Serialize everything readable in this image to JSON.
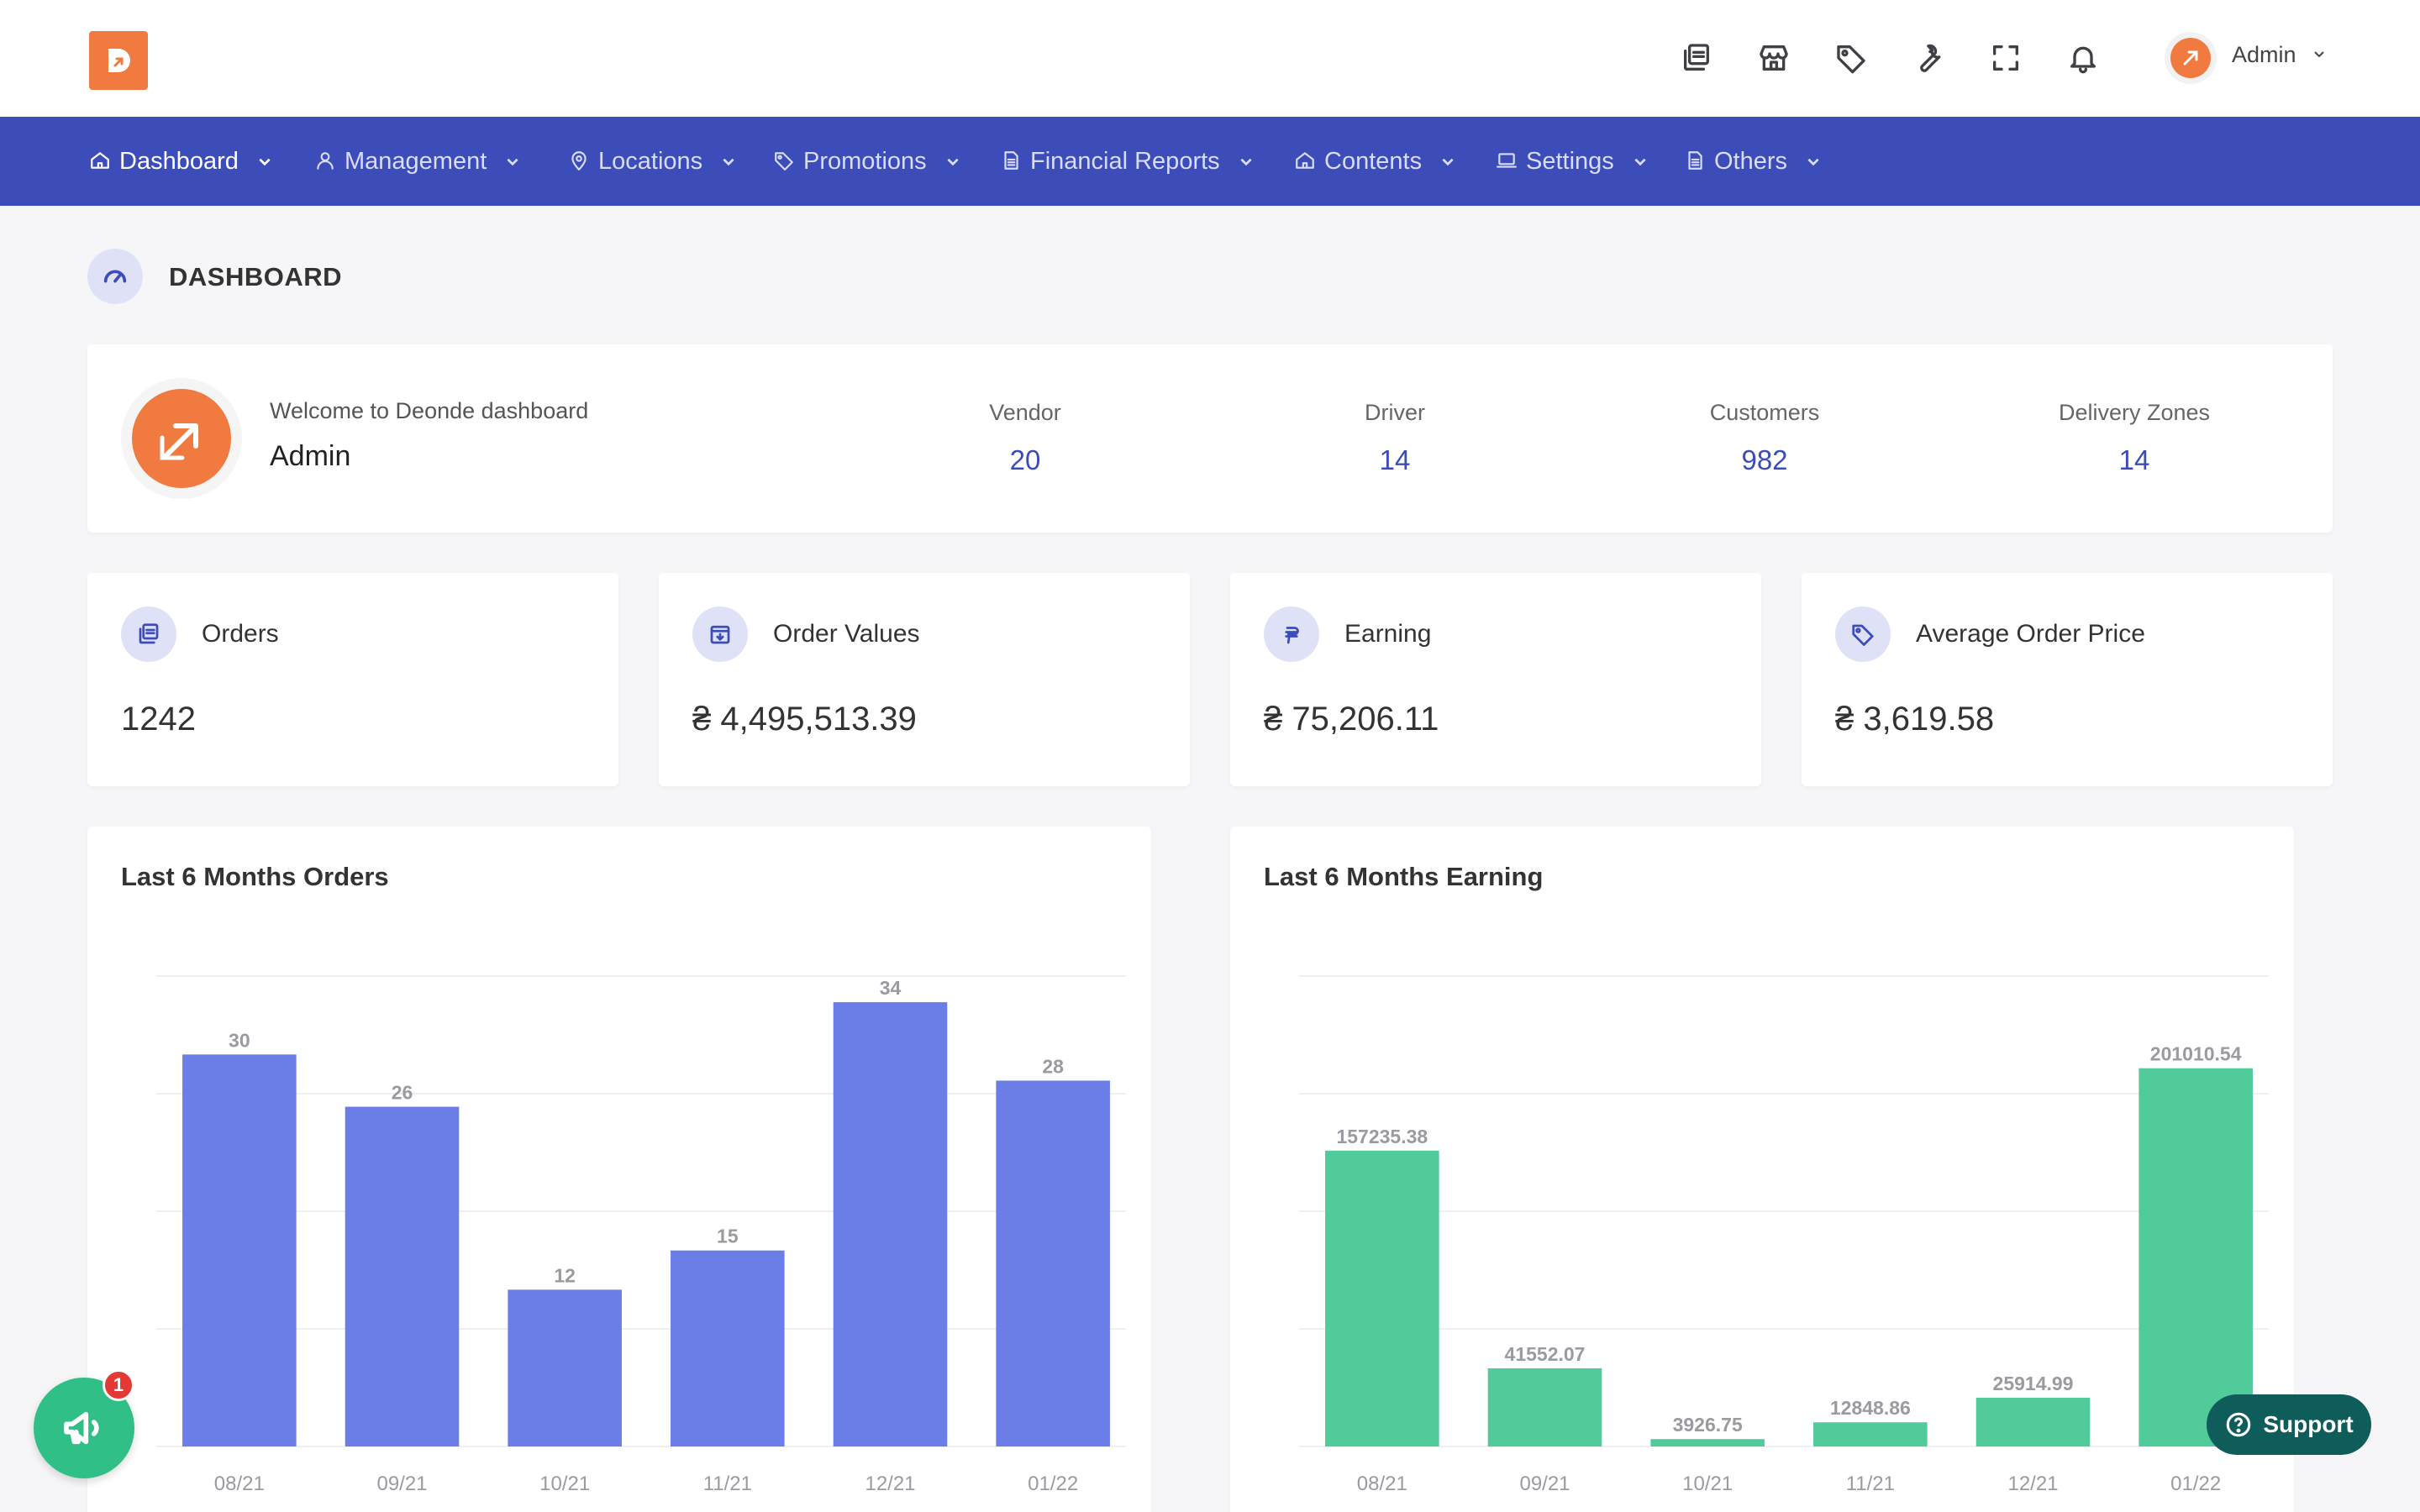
{
  "header": {
    "user_name": "Admin",
    "icons": [
      "orders-icon",
      "store-icon",
      "tag-icon",
      "wrench-icon",
      "fullscreen-icon",
      "bell-icon"
    ]
  },
  "nav": {
    "items": [
      {
        "label": "Dashboard",
        "icon": "home-icon",
        "active": true
      },
      {
        "label": "Management",
        "icon": "user-icon"
      },
      {
        "label": "Locations",
        "icon": "map-pin-icon"
      },
      {
        "label": "Promotions",
        "icon": "tag-icon"
      },
      {
        "label": "Financial Reports",
        "icon": "document-icon"
      },
      {
        "label": "Contents",
        "icon": "home-icon"
      },
      {
        "label": "Settings",
        "icon": "laptop-icon"
      },
      {
        "label": "Others",
        "icon": "document-icon"
      }
    ]
  },
  "page": {
    "title": "DASHBOARD"
  },
  "welcome": {
    "subtitle": "Welcome to Deonde dashboard",
    "name": "Admin",
    "stats": [
      {
        "label": "Vendor",
        "value": "20"
      },
      {
        "label": "Driver",
        "value": "14"
      },
      {
        "label": "Customers",
        "value": "982"
      },
      {
        "label": "Delivery Zones",
        "value": "14"
      }
    ]
  },
  "metrics": [
    {
      "label": "Orders",
      "value": "1242",
      "icon": "orders-icon"
    },
    {
      "label": "Order Values",
      "value": "₴ 4,495,513.39",
      "icon": "archive-icon"
    },
    {
      "label": "Earning",
      "value": "₴ 75,206.11",
      "icon": "currency-icon"
    },
    {
      "label": "Average Order Price",
      "value": "₴ 3,619.58",
      "icon": "tag-icon"
    }
  ],
  "chart_data": [
    {
      "type": "bar",
      "title": "Last 6 Months Orders",
      "categories": [
        "08/21",
        "09/21",
        "10/21",
        "11/21",
        "12/21",
        "01/22"
      ],
      "values": [
        30,
        26,
        12,
        15,
        34,
        28
      ],
      "labels": [
        "30",
        "26",
        "12",
        "15",
        "34",
        "28"
      ],
      "ylim": [
        0,
        36
      ],
      "grid": true,
      "color": "#6b7ee8"
    },
    {
      "type": "bar",
      "title": "Last 6 Months Earning",
      "categories": [
        "08/21",
        "09/21",
        "10/21",
        "11/21",
        "12/21",
        "01/22"
      ],
      "values": [
        157235.38,
        41552.07,
        3926.75,
        12848.86,
        25914.99,
        201010.54
      ],
      "labels": [
        "157235.38",
        "41552.07",
        "3926.75",
        "12848.86",
        "25914.99",
        "201010.54"
      ],
      "ylim": [
        0,
        250000
      ],
      "grid": true,
      "color": "#52cb9b"
    }
  ],
  "widgets": {
    "notification_count": "1",
    "support_label": "Support"
  },
  "colors": {
    "brand_orange": "#f07a3f",
    "nav_blue": "#3c4cb9",
    "accent_blue": "#3c4cb9"
  }
}
